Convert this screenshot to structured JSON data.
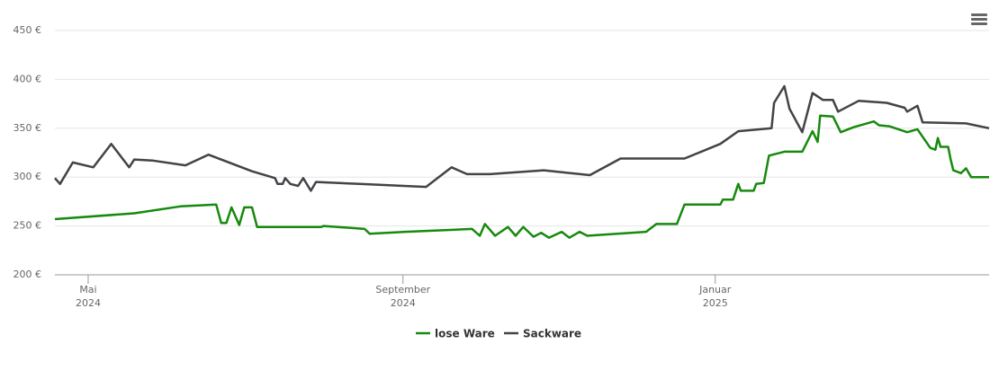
{
  "chart_data": {
    "type": "line",
    "xlim": [
      "2024-04-18",
      "2025-04-18"
    ],
    "xticks": [
      {
        "value": "2024-05-01",
        "label": "Mai 2024"
      },
      {
        "value": "2024-09-01",
        "label": "September 2024"
      },
      {
        "value": "2025-01-01",
        "label": "Januar 2025"
      }
    ],
    "ylim": [
      200,
      450
    ],
    "yticks": [
      {
        "value": 200,
        "label": "200 €"
      },
      {
        "value": 250,
        "label": "250 €"
      },
      {
        "value": 300,
        "label": "300 €"
      },
      {
        "value": 350,
        "label": "350 €"
      },
      {
        "value": 400,
        "label": "400 €"
      },
      {
        "value": 450,
        "label": "450 €"
      }
    ],
    "grid": true,
    "legend": "bottom",
    "series": [
      {
        "name": "lose Ware",
        "color": "#168a0c",
        "x": [
          "2024-04-18",
          "2024-05-19",
          "2024-06-06",
          "2024-06-20",
          "2024-06-22",
          "2024-06-24",
          "2024-06-26",
          "2024-06-29",
          "2024-07-01",
          "2024-07-04",
          "2024-07-06",
          "2024-07-31",
          "2024-08-01",
          "2024-08-17",
          "2024-08-19",
          "2024-09-02",
          "2024-09-28",
          "2024-10-01",
          "2024-10-03",
          "2024-10-07",
          "2024-10-12",
          "2024-10-15",
          "2024-10-18",
          "2024-10-22",
          "2024-10-25",
          "2024-10-28",
          "2024-11-02",
          "2024-11-05",
          "2024-11-09",
          "2024-11-12",
          "2024-12-05",
          "2024-12-09",
          "2024-12-17",
          "2024-12-20",
          "2025-01-03",
          "2025-01-04",
          "2025-01-08",
          "2025-01-10",
          "2025-01-11",
          "2025-01-16",
          "2025-01-17",
          "2025-01-20",
          "2025-01-22",
          "2025-01-28",
          "2025-02-04",
          "2025-02-08",
          "2025-02-10",
          "2025-02-11",
          "2025-02-16",
          "2025-02-19",
          "2025-02-24",
          "2025-03-04",
          "2025-03-06",
          "2025-03-10",
          "2025-03-17",
          "2025-03-21",
          "2025-03-26",
          "2025-03-28",
          "2025-03-29",
          "2025-03-30",
          "2025-04-02",
          "2025-04-03",
          "2025-04-04",
          "2025-04-07",
          "2025-04-09",
          "2025-04-11",
          "2025-04-18"
        ],
        "values": [
          257,
          263,
          270,
          272,
          253,
          253,
          269,
          251,
          269,
          269,
          249,
          249,
          250,
          247,
          242,
          244,
          247,
          240,
          252,
          240,
          249,
          240,
          249,
          239,
          243,
          238,
          244,
          238,
          244,
          240,
          244,
          252,
          252,
          272,
          272,
          277,
          277,
          293,
          286,
          286,
          293,
          294,
          322,
          326,
          326,
          347,
          336,
          363,
          362,
          346,
          351,
          357,
          353,
          352,
          346,
          349,
          330,
          328,
          340,
          331,
          331,
          318,
          307,
          304,
          309,
          300,
          300
        ]
      },
      {
        "name": "Sackware",
        "color": "#434348",
        "x": [
          "2024-04-18",
          "2024-04-20",
          "2024-04-25",
          "2024-05-03",
          "2024-05-10",
          "2024-05-17",
          "2024-05-19",
          "2024-05-26",
          "2024-06-08",
          "2024-06-17",
          "2024-07-04",
          "2024-07-13",
          "2024-07-14",
          "2024-07-16",
          "2024-07-17",
          "2024-07-19",
          "2024-07-22",
          "2024-07-24",
          "2024-07-27",
          "2024-07-29",
          "2024-08-15",
          "2024-09-10",
          "2024-09-20",
          "2024-09-26",
          "2024-10-05",
          "2024-10-26",
          "2024-11-13",
          "2024-11-25",
          "2024-12-20",
          "2025-01-03",
          "2025-01-10",
          "2025-01-23",
          "2025-01-24",
          "2025-01-28",
          "2025-01-30",
          "2025-02-04",
          "2025-02-08",
          "2025-02-12",
          "2025-02-16",
          "2025-02-18",
          "2025-02-26",
          "2025-03-09",
          "2025-03-16",
          "2025-03-17",
          "2025-03-21",
          "2025-03-23",
          "2025-04-09",
          "2025-04-18"
        ],
        "values": [
          299,
          293,
          315,
          310,
          334,
          310,
          318,
          317,
          312,
          323,
          306,
          299,
          293,
          293,
          299,
          293,
          291,
          299,
          286,
          295,
          293,
          290,
          310,
          303,
          303,
          307,
          302,
          319,
          319,
          334,
          347,
          350,
          376,
          393,
          370,
          346,
          386,
          379,
          379,
          367,
          378,
          376,
          371,
          367,
          373,
          356,
          355,
          350
        ]
      }
    ]
  }
}
